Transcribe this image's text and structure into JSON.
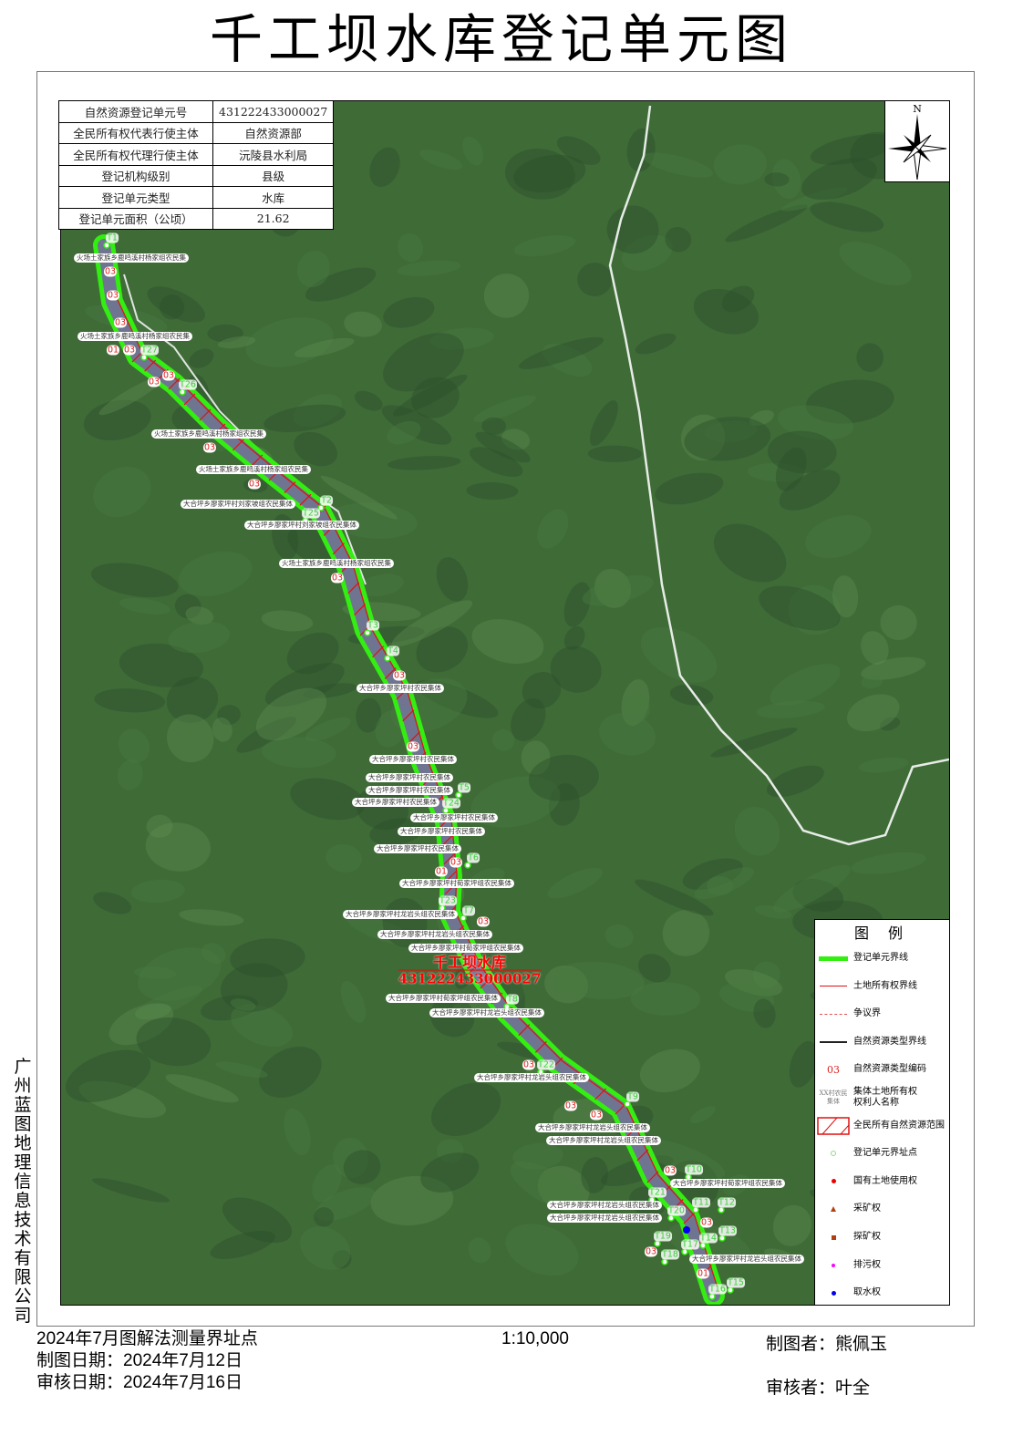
{
  "title": "千工坝水库登记单元图",
  "info_table": [
    {
      "key": "自然资源登记单元号",
      "value": "431222433000027"
    },
    {
      "key": "全民所有权代表行使主体",
      "value": "自然资源部"
    },
    {
      "key": "全民所有权代理行使主体",
      "value": "沅陵县水利局"
    },
    {
      "key": "登记机构级别",
      "value": "县级"
    },
    {
      "key": "登记单元类型",
      "value": "水库"
    },
    {
      "key": "登记单元面积（公顷）",
      "value": "21.62"
    }
  ],
  "north_label": "N",
  "unit_name": "千工坝水库",
  "unit_code": "431222433000027",
  "colors": {
    "boundary": "#33ee11",
    "ownership_line": "#e01010",
    "code_text": "#e02020",
    "water_right": "#0000ee"
  },
  "legend": {
    "title": "图 例",
    "items": [
      {
        "icon": "green-line",
        "label": "登记单元界线"
      },
      {
        "icon": "red-line",
        "label": "土地所有权界线"
      },
      {
        "icon": "red-dashed-line",
        "label": "争议界"
      },
      {
        "icon": "black-line",
        "label": "自然资源类型界线"
      },
      {
        "icon": "code-sample",
        "symbol_text": "03",
        "label": "自然资源类型编码"
      },
      {
        "icon": "owner-sample",
        "symbol_text": "XX村农民集体",
        "label": "集体土地所有权权利人名称"
      },
      {
        "icon": "hatched-box",
        "label": "全民所有自然资源范围"
      },
      {
        "icon": "green-dot",
        "label": "登记单元界址点"
      },
      {
        "icon": "red-dot",
        "label": "国有土地使用权"
      },
      {
        "icon": "brown-triangle",
        "label": "采矿权"
      },
      {
        "icon": "brown-square",
        "label": "探矿权"
      },
      {
        "icon": "magenta-dot",
        "label": "排污权"
      },
      {
        "icon": "blue-dot",
        "label": "取水权"
      }
    ]
  },
  "map_labels": {
    "villages": [
      "火场土家族乡鹿鸣溪村杨家组农民集",
      "火场土家族乡鹿鸣溪村杨家组农民集",
      "火场土家族乡鹿鸣溪村杨家组农民集",
      "火场土家族乡鹿鸣溪村杨家组农民集",
      "大合坪乡廖家坪村刘家坡组农民集体",
      "大合坪乡廖家坪村刘家坡组农民集体",
      "火场土家族乡鹿鸣溪村杨家组农民集",
      "大合坪乡廖家坪村农民集体",
      "大合坪乡廖家坪村农民集体",
      "大合坪乡廖家坪村农民集体",
      "大合坪乡廖家坪村农民集体",
      "大合坪乡廖家坪村农民集体",
      "大合坪乡廖家坪村农民集体",
      "大合坪乡廖家坪村农民集体",
      "大合坪乡廖家坪村农民集体",
      "大合坪乡廖家坪村荀家坪组农民集体",
      "大合坪乡廖家坪村龙岩头组农民集体",
      "大合坪乡廖家坪村龙岩头组农民集体",
      "大合坪乡廖家坪村荀家坪组农民集体",
      "大合坪乡廖家坪村荀家坪组农民集体",
      "大合坪乡廖家坪村龙岩头组农民集体",
      "大合坪乡廖家坪村龙岩头组农民集体",
      "大合坪乡廖家坪村龙岩头组农民集体",
      "大合坪乡廖家坪村龙岩头组农民集体",
      "大合坪乡廖家坪村荀家坪组农民集体",
      "大合坪乡廖家坪村龙岩头组农民集体",
      "大合坪乡廖家坪村龙岩头组农民集体",
      "大合坪乡廖家坪村龙岩头组农民集体"
    ],
    "codes": [
      "03",
      "03",
      "03",
      "01",
      "03",
      "03",
      "03",
      "03",
      "03",
      "03",
      "03",
      "03",
      "03",
      "01",
      "03",
      "03",
      "03",
      "03",
      "03",
      "03",
      "03",
      "01"
    ],
    "points": [
      "T1",
      "T27",
      "T26",
      "T2",
      "T25",
      "T3",
      "T4",
      "T5",
      "T24",
      "T6",
      "T23",
      "T7",
      "T8",
      "T22",
      "T9",
      "T10",
      "T21",
      "T11",
      "T12",
      "T20",
      "T13",
      "T14",
      "T19",
      "T17",
      "T18",
      "T15",
      "T16"
    ]
  },
  "company": "广州蓝图地理信息技术有限公司",
  "footer": {
    "method": "2024年7月图解法测量界址点",
    "map_date": "制图日期：2024年7月12日",
    "review_date": "审核日期：2024年7月16日",
    "scale": "1:10,000",
    "cartographer": "制图者：熊佩玉",
    "reviewer": "审核者：叶全"
  }
}
